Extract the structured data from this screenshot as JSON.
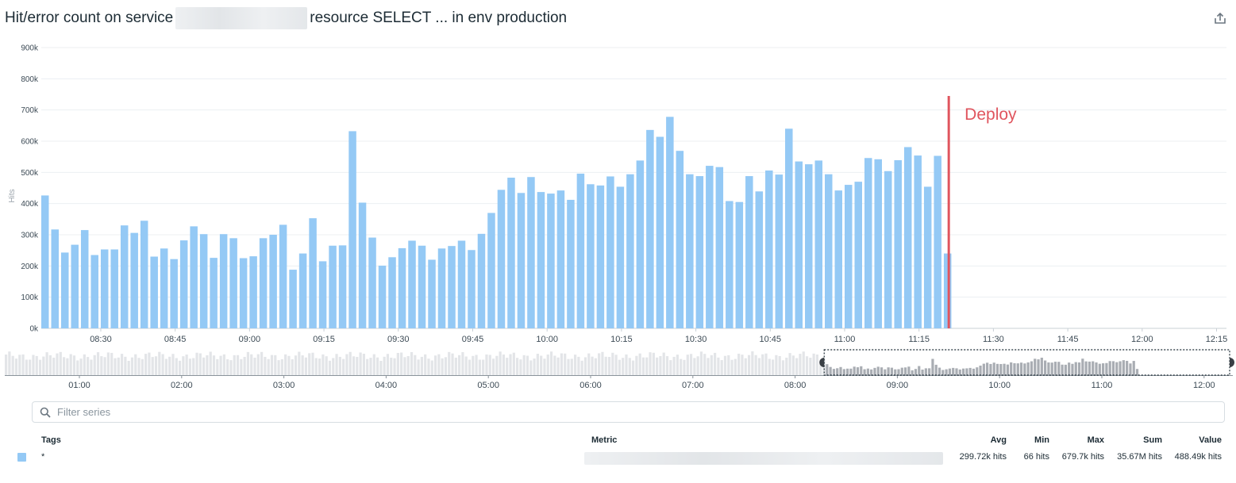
{
  "header": {
    "title_prefix": "Hit/error count on service",
    "title_suffix": "resource SELECT ... in env production",
    "export_icon": "share-export-icon"
  },
  "chart_data": {
    "type": "bar",
    "ylabel": "Hits",
    "y_ticks": [
      "0k",
      "100k",
      "200k",
      "300k",
      "400k",
      "500k",
      "600k",
      "700k",
      "800k",
      "900k"
    ],
    "ylim": [
      0,
      900000
    ],
    "x_ticks": [
      "08:30",
      "08:45",
      "09:00",
      "09:15",
      "09:30",
      "09:45",
      "10:00",
      "10:15",
      "10:30",
      "10:45",
      "11:00",
      "11:15",
      "11:30",
      "11:45",
      "12:00",
      "12:15"
    ],
    "x_range": [
      "08:18",
      "12:17"
    ],
    "bar_interval_minutes": 2,
    "series": [
      {
        "color": "#94c9f5",
        "x_start": "08:18",
        "values": [
          426000,
          317000,
          243000,
          268000,
          315000,
          235000,
          253000,
          253000,
          330000,
          306000,
          345000,
          230000,
          256000,
          222000,
          282000,
          327000,
          302000,
          226000,
          302000,
          289000,
          225000,
          231000,
          289000,
          300000,
          332000,
          188000,
          240000,
          353000,
          215000,
          265000,
          266000,
          632000,
          403000,
          291000,
          201000,
          228000,
          257000,
          281000,
          265000,
          220000,
          256000,
          264000,
          281000,
          251000,
          303000,
          370000,
          444000,
          483000,
          434000,
          485000,
          437000,
          432000,
          442000,
          412000,
          496000,
          462000,
          458000,
          487000,
          454000,
          494000,
          538000,
          636000,
          614000,
          678000,
          569000,
          494000,
          488000,
          521000,
          517000,
          408000,
          405000,
          488000,
          439000,
          506000,
          493000,
          640000,
          535000,
          526000,
          538000,
          494000,
          442000,
          460000,
          470000,
          546000,
          542000,
          504000,
          539000,
          581000,
          554000,
          454000,
          553000,
          240000
        ]
      }
    ],
    "annotation": {
      "label": "Deploy",
      "time": "11:21",
      "color": "#e0555e"
    },
    "overview": {
      "x_ticks": [
        "01:00",
        "02:00",
        "03:00",
        "04:00",
        "05:00",
        "06:00",
        "07:00",
        "08:00",
        "09:00",
        "10:00",
        "11:00",
        "12:00"
      ],
      "selection": [
        "08:18",
        "12:17"
      ]
    }
  },
  "filter": {
    "placeholder": "Filter series"
  },
  "legend": {
    "headers": {
      "tags": "Tags",
      "metric": "Metric",
      "avg": "Avg",
      "min": "Min",
      "max": "Max",
      "sum": "Sum",
      "value": "Value"
    },
    "rows": [
      {
        "tag": "*",
        "color": "#94c9f5",
        "avg": "299.72k hits",
        "min": "66 hits",
        "max": "679.7k hits",
        "sum": "35.67M hits",
        "value": "488.49k hits"
      }
    ]
  }
}
